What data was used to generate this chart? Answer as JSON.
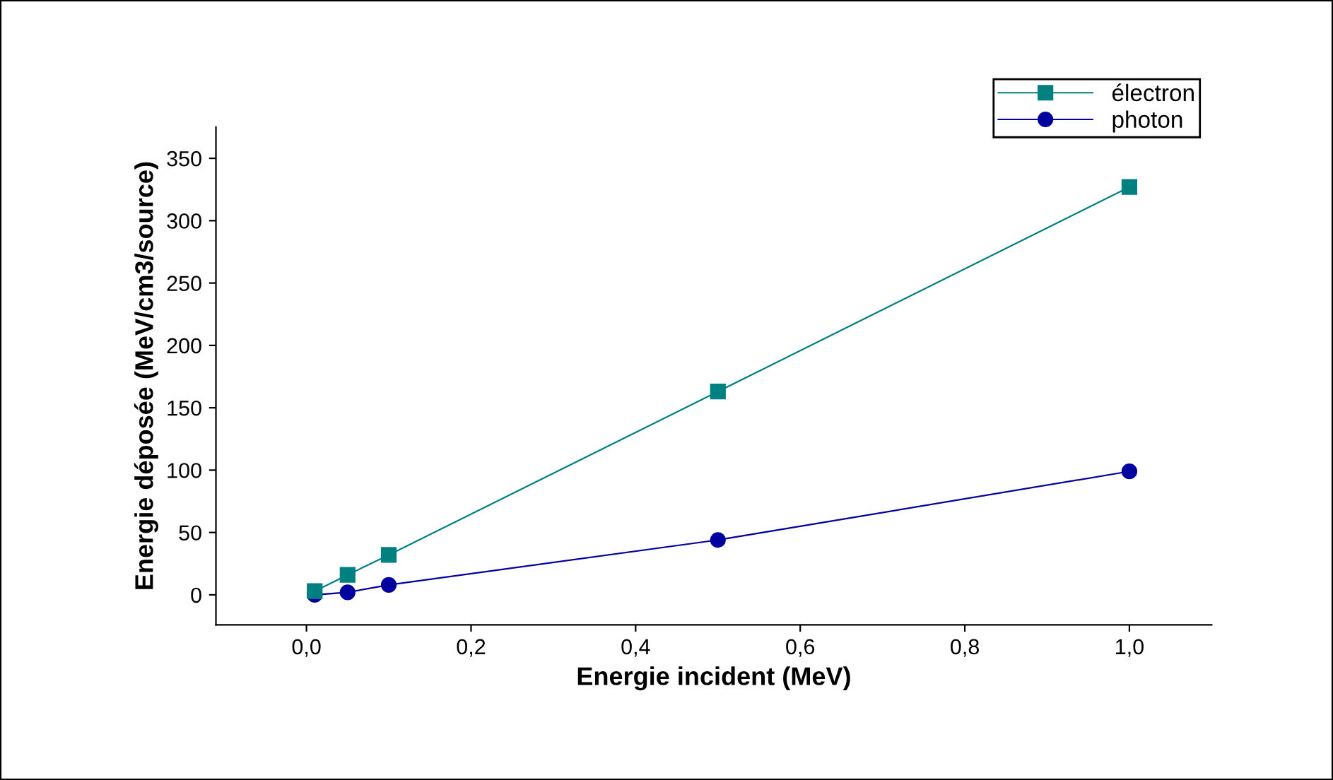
{
  "chart_data": {
    "type": "line",
    "xlabel": "Energie incident (MeV)",
    "ylabel": "Energie déposée (MeV/cm3/source)",
    "series": [
      {
        "name": "électron",
        "color": "#008080",
        "marker": "square",
        "x": [
          0.01,
          0.05,
          0.1,
          0.5,
          1.0
        ],
        "values": [
          3,
          16,
          32,
          163,
          327
        ]
      },
      {
        "name": "photon",
        "color": "#0000a0",
        "marker": "circle",
        "x": [
          0.01,
          0.05,
          0.1,
          0.5,
          1.0
        ],
        "values": [
          0,
          2,
          8,
          44,
          99
        ]
      }
    ],
    "xlim": [
      -0.11,
      1.1
    ],
    "ylim": [
      -24,
      375
    ],
    "xticks": [
      {
        "value": 0.0,
        "label": "0,0"
      },
      {
        "value": 0.2,
        "label": "0,2"
      },
      {
        "value": 0.4,
        "label": "0,4"
      },
      {
        "value": 0.6,
        "label": "0,6"
      },
      {
        "value": 0.8,
        "label": "0,8"
      },
      {
        "value": 1.0,
        "label": "1,0"
      }
    ],
    "yticks": [
      0,
      50,
      100,
      150,
      200,
      250,
      300,
      350
    ],
    "grid": false,
    "legend": "top right",
    "line_style": "solid"
  }
}
